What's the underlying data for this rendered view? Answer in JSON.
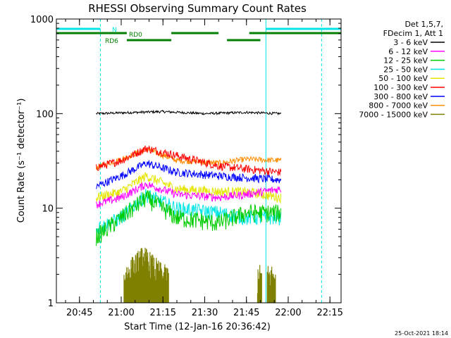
{
  "chart_data": {
    "type": "line",
    "title": "RHESSI Observing Summary Count Rates",
    "xlabel": "Start Time (12-Jan-16 20:36:42)",
    "ylabel": "Count Rate (s⁻¹ detector⁻¹)",
    "yscale": "log",
    "ylim": [
      1,
      1000
    ],
    "y_ticks": [
      {
        "value": 1,
        "label": "1"
      },
      {
        "value": 10,
        "label": "10"
      },
      {
        "value": 100,
        "label": "100"
      },
      {
        "value": 1000,
        "label": "1000"
      }
    ],
    "xlim": [
      "20:36:42",
      "22:19:00"
    ],
    "x_ticks": [
      "20:45",
      "21:00",
      "21:15",
      "21:30",
      "21:45",
      "22:00",
      "22:15"
    ],
    "legend_header": [
      "Det 1,5,7,",
      "FDecim 1, Att 1"
    ],
    "legend_placement": "right",
    "timestamp": "25-Oct-2021 18:14",
    "data_start": "20:51:00",
    "data_end": "21:57:30",
    "series": [
      {
        "name": "3 - 6 keV",
        "color": "#000000",
        "values_by_time": [
          [
            "20:51",
            100
          ],
          [
            "21:05",
            103
          ],
          [
            "21:15",
            105
          ],
          [
            "21:30",
            100
          ],
          [
            "21:45",
            103
          ],
          [
            "21:57",
            100
          ]
        ]
      },
      {
        "name": "6 - 12 keV",
        "color": "#ff00ff",
        "values_by_time": [
          [
            "20:51",
            11
          ],
          [
            "21:00",
            13
          ],
          [
            "21:09",
            18
          ],
          [
            "21:20",
            14
          ],
          [
            "21:35",
            13
          ],
          [
            "21:45",
            14
          ],
          [
            "21:57",
            16
          ]
        ]
      },
      {
        "name": "12 - 25 keV",
        "color": "#00cc00",
        "values_by_time": [
          [
            "20:51",
            5
          ],
          [
            "21:00",
            8
          ],
          [
            "21:09",
            13
          ],
          [
            "21:20",
            8
          ],
          [
            "21:35",
            7
          ],
          [
            "21:45",
            9
          ],
          [
            "21:57",
            9
          ]
        ]
      },
      {
        "name": "25 - 50 keV",
        "color": "#00e5e5",
        "values_by_time": [
          [
            "20:51",
            6
          ],
          [
            "21:00",
            8
          ],
          [
            "21:09",
            14
          ],
          [
            "21:20",
            10
          ],
          [
            "21:35",
            9
          ],
          [
            "21:45",
            8
          ],
          [
            "21:57",
            8
          ]
        ]
      },
      {
        "name": "50 - 100 keV",
        "color": "#e5e500",
        "values_by_time": [
          [
            "20:51",
            13
          ],
          [
            "21:00",
            15
          ],
          [
            "21:09",
            22
          ],
          [
            "21:20",
            16
          ],
          [
            "21:35",
            15
          ],
          [
            "21:45",
            15
          ],
          [
            "21:57",
            13
          ]
        ]
      },
      {
        "name": "100 - 300 keV",
        "color": "#ff0000",
        "values_by_time": [
          [
            "20:51",
            27
          ],
          [
            "21:00",
            32
          ],
          [
            "21:09",
            43
          ],
          [
            "21:20",
            36
          ],
          [
            "21:35",
            28
          ],
          [
            "21:45",
            26
          ],
          [
            "21:57",
            24
          ]
        ]
      },
      {
        "name": "300 - 800 keV",
        "color": "#0000ff",
        "values_by_time": [
          [
            "20:51",
            17
          ],
          [
            "21:00",
            22
          ],
          [
            "21:09",
            30
          ],
          [
            "21:20",
            24
          ],
          [
            "21:35",
            22
          ],
          [
            "21:45",
            21
          ],
          [
            "21:57",
            20
          ]
        ]
      },
      {
        "name": "800 - 7000 keV",
        "color": "#ff8c00",
        "values_by_time": [
          [
            "20:51",
            27
          ],
          [
            "21:00",
            33
          ],
          [
            "21:09",
            42
          ],
          [
            "21:20",
            32
          ],
          [
            "21:35",
            30
          ],
          [
            "21:45",
            33
          ],
          [
            "21:57",
            32
          ]
        ]
      },
      {
        "name": "7000 - 15000 keV",
        "color": "#808000",
        "values_by_time": [
          [
            "21:01",
            1.5
          ],
          [
            "21:08",
            2.4
          ],
          [
            "21:15",
            1.5
          ],
          [
            "21:50",
            1.5
          ]
        ]
      }
    ],
    "flag_bars": [
      {
        "label": "N",
        "color": "#00e5e5",
        "intervals": [
          [
            "20:36:42",
            "20:52:30"
          ],
          [
            "21:52:00",
            "22:19:00"
          ]
        ]
      },
      {
        "label": "RD0",
        "color": "#008000",
        "intervals": [
          [
            "20:36:42",
            "21:02:00"
          ],
          [
            "21:18:00",
            "21:35:00"
          ],
          [
            "21:46:00",
            "22:19:00"
          ]
        ]
      },
      {
        "label": "RD6",
        "color": "#008000",
        "intervals": [
          [
            "21:02:00",
            "21:18:00"
          ],
          [
            "21:38:00",
            "21:50:00"
          ]
        ]
      }
    ],
    "vertical_lines": [
      {
        "time": "20:36:42",
        "style": "solid",
        "color": "#00e5e5"
      },
      {
        "time": "20:52:30",
        "style": "dashed",
        "color": "#00e5e5"
      },
      {
        "time": "21:52:00",
        "style": "solid",
        "color": "#00e5e5"
      },
      {
        "time": "22:12:00",
        "style": "dashed",
        "color": "#00e5e5"
      }
    ]
  }
}
